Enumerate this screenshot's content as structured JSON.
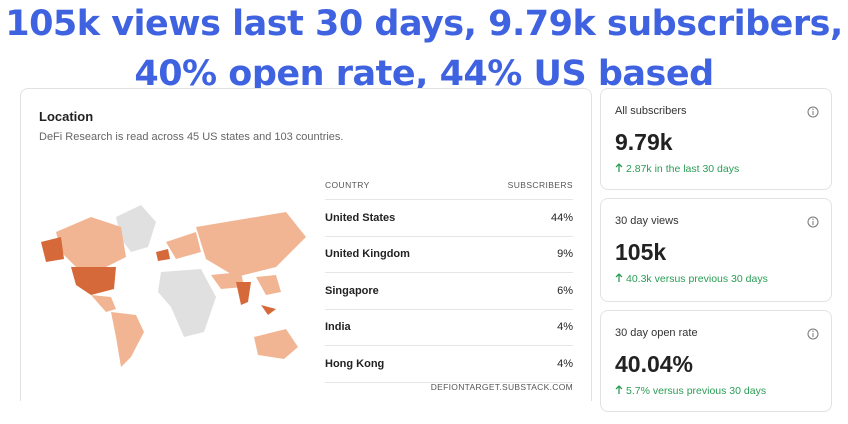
{
  "headline": {
    "lines": [
      "105k views last 30 days, 9.79k subscribers,",
      "40% open rate, 44% US based"
    ]
  },
  "location": {
    "title": "Location",
    "subtitle": "DeFi Research is read across 45 US states and 103 countries.",
    "table": {
      "header": [
        "COUNTRY",
        "SUBSCRIBERS"
      ],
      "rows": [
        [
          "United States",
          "44%"
        ],
        [
          "United Kingdom",
          "9%"
        ],
        [
          "Singapore",
          "6%"
        ],
        [
          "India",
          "4%"
        ],
        [
          "Hong Kong",
          "4%"
        ]
      ]
    },
    "footer": "DEFIONTARGET.SUBSTACK.COM"
  },
  "stats": [
    {
      "label": "All subscribers",
      "value": "9.79k",
      "delta": "2.87k in the last 30 days"
    },
    {
      "label": "30 day views",
      "value": "105k",
      "delta": "40.3k versus previous 30 days"
    },
    {
      "label": "30 day open rate",
      "value": "40.04%",
      "delta": "5.7% versus previous 30 days"
    }
  ]
}
